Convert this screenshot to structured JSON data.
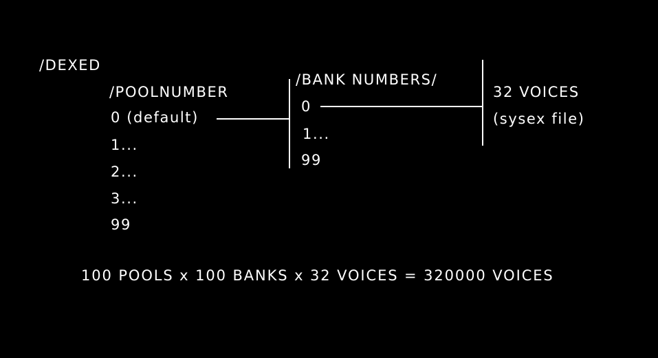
{
  "diagram": {
    "root_label": "/DEXED",
    "pool_header": "/POOLNUMBER",
    "pool_items": [
      "0 (default)",
      "1...",
      "2...",
      "3...",
      "99"
    ],
    "bank_header": "/BANK NUMBERS/",
    "bank_items": [
      "0",
      "1...",
      "99"
    ],
    "voices_label_line1": "32 VOICES",
    "voices_label_line2": "(sysex file)",
    "formula": "100 POOLS x 100 BANKS x 32 VOICES = 320000 VOICES"
  },
  "colors": {
    "background": "#000000",
    "foreground": "#ffffff"
  }
}
